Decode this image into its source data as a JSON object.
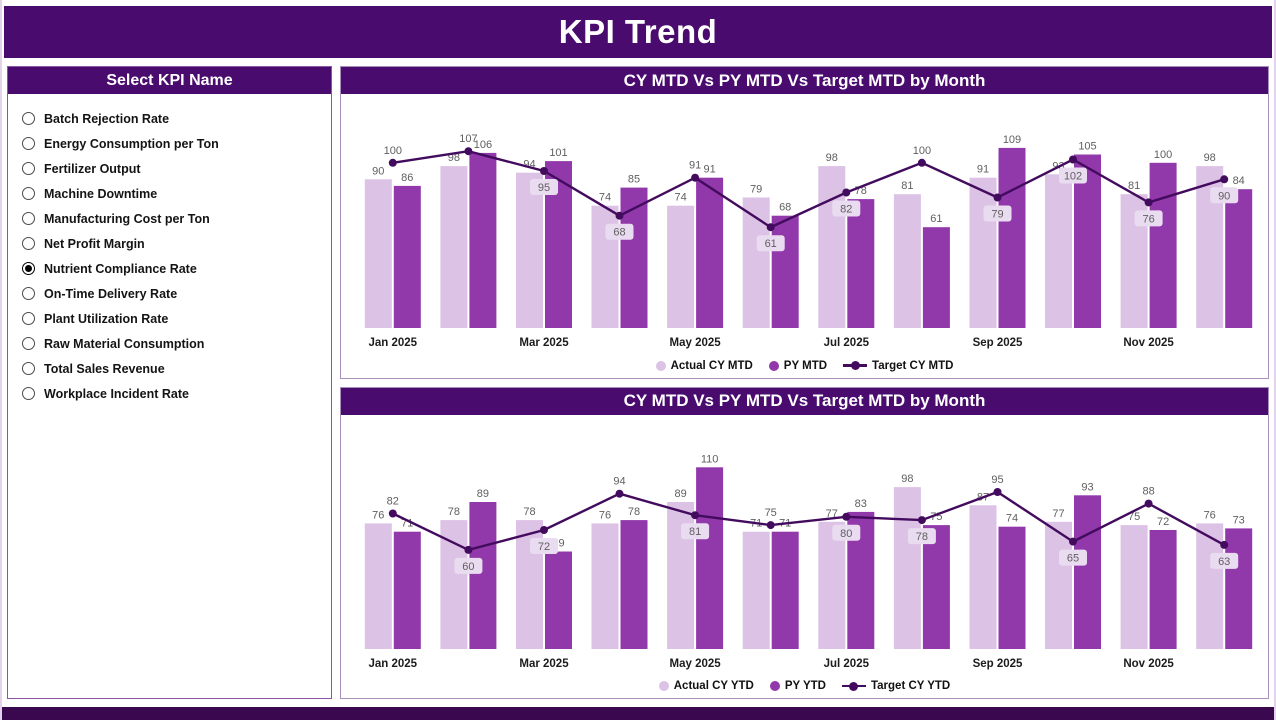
{
  "header": {
    "title": "KPI Trend"
  },
  "sidebar": {
    "title": "Select KPI Name",
    "items": [
      {
        "label": "Batch Rejection Rate",
        "selected": false
      },
      {
        "label": "Energy Consumption per Ton",
        "selected": false
      },
      {
        "label": "Fertilizer Output",
        "selected": false
      },
      {
        "label": "Machine Downtime",
        "selected": false
      },
      {
        "label": "Manufacturing Cost per Ton",
        "selected": false
      },
      {
        "label": "Net Profit Margin",
        "selected": false
      },
      {
        "label": "Nutrient Compliance Rate",
        "selected": true
      },
      {
        "label": "On-Time Delivery Rate",
        "selected": false
      },
      {
        "label": "Plant Utilization Rate",
        "selected": false
      },
      {
        "label": "Raw Material Consumption",
        "selected": false
      },
      {
        "label": "Total Sales Revenue",
        "selected": false
      },
      {
        "label": "Workplace Incident Rate",
        "selected": false
      }
    ]
  },
  "chart_data": [
    {
      "type": "bar",
      "title": "CY MTD Vs PY MTD Vs Target MTD by Month",
      "categories": [
        "Jan 2025",
        "Feb 2025",
        "Mar 2025",
        "Apr 2025",
        "May 2025",
        "Jun 2025",
        "Jul 2025",
        "Aug 2025",
        "Sep 2025",
        "Oct 2025",
        "Nov 2025",
        "Dec 2025"
      ],
      "x_tick_labels": [
        "Jan 2025",
        "Mar 2025",
        "May 2025",
        "Jul 2025",
        "Sep 2025",
        "Nov 2025"
      ],
      "series": [
        {
          "name": "Actual CY MTD",
          "type": "bar",
          "color": "#DCC2E4",
          "values": [
            90,
            98,
            94,
            74,
            74,
            79,
            98,
            81,
            91,
            93,
            81,
            98
          ]
        },
        {
          "name": "PY MTD",
          "type": "bar",
          "color": "#9138AA",
          "values": [
            86,
            106,
            101,
            85,
            91,
            68,
            78,
            61,
            109,
            105,
            100,
            84
          ]
        },
        {
          "name": "Target CY MTD",
          "type": "line",
          "color": "#430B5E",
          "values": [
            100,
            107,
            95,
            68,
            91,
            61,
            82,
            100,
            79,
            102,
            76,
            90
          ]
        }
      ],
      "ylim": [
        0,
        115
      ],
      "grid": false,
      "legend_position": "bottom"
    },
    {
      "type": "bar",
      "title": "CY MTD Vs PY MTD Vs Target MTD by Month",
      "categories": [
        "Jan 2025",
        "Feb 2025",
        "Mar 2025",
        "Apr 2025",
        "May 2025",
        "Jun 2025",
        "Jul 2025",
        "Aug 2025",
        "Sep 2025",
        "Oct 2025",
        "Nov 2025",
        "Dec 2025"
      ],
      "x_tick_labels": [
        "Jan 2025",
        "Mar 2025",
        "May 2025",
        "Jul 2025",
        "Sep 2025",
        "Nov 2025"
      ],
      "series": [
        {
          "name": "Actual CY YTD",
          "type": "bar",
          "color": "#DCC2E4",
          "values": [
            76,
            78,
            78,
            76,
            89,
            71,
            77,
            98,
            87,
            77,
            75,
            76
          ]
        },
        {
          "name": "PY YTD",
          "type": "bar",
          "color": "#9138AA",
          "values": [
            71,
            89,
            59,
            78,
            110,
            71,
            83,
            75,
            74,
            93,
            72,
            73
          ]
        },
        {
          "name": "Target CY YTD",
          "type": "line",
          "color": "#430B5E",
          "values": [
            82,
            60,
            72,
            94,
            81,
            75,
            80,
            78,
            95,
            65,
            88,
            63
          ]
        }
      ],
      "ylim": [
        0,
        115
      ],
      "grid": false,
      "legend_position": "bottom"
    }
  ],
  "colors": {
    "header_bg": "#4A0B6E",
    "panel_title_bg": "#4A0B6E",
    "actual_bar": "#DCC2E4",
    "py_bar": "#9138AA",
    "target_line": "#430B5E",
    "label_box_bg": "#EADCF0",
    "value_label_text": "#5F5F5F",
    "footer_bg": "#39084F"
  }
}
